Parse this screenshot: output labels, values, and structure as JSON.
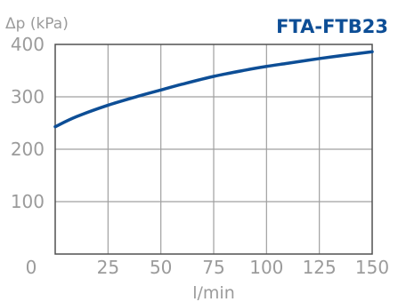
{
  "chart_data": {
    "type": "line",
    "title": "FTA-FTB23",
    "xlabel": "l/min",
    "ylabel": "Δp (kPa)",
    "xlim": [
      0,
      150
    ],
    "ylim": [
      0,
      400
    ],
    "xticks": [
      0,
      25,
      50,
      75,
      100,
      125,
      150
    ],
    "xtick_labels": [
      "0",
      "25",
      "50",
      "75",
      "100",
      "125",
      "150"
    ],
    "yticks": [
      100,
      200,
      300,
      400
    ],
    "ytick_labels": [
      "100",
      "200",
      "300",
      "400"
    ],
    "grid": true,
    "legend": "none",
    "series": [
      {
        "color": "#0d4e96",
        "x": [
          0,
          10,
          25,
          40,
          50,
          60,
          75,
          90,
          100,
          110,
          125,
          140,
          150
        ],
        "y": [
          243,
          262,
          284,
          302,
          313,
          324,
          339,
          351,
          358,
          364,
          373,
          381,
          386
        ]
      }
    ]
  },
  "colors": {
    "title": "#0d4e96",
    "tick_labels": "#9b9b9b",
    "grid": "#a0a0a0",
    "frame": "#505050"
  }
}
